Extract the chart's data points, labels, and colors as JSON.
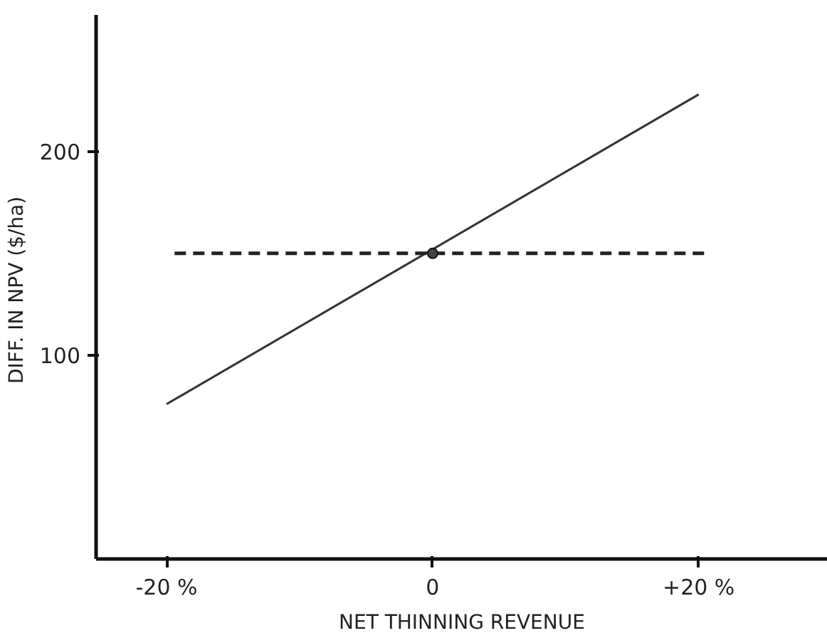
{
  "chart_data": {
    "type": "line",
    "xlabel": "NET THINNING REVENUE",
    "ylabel": "DIFF. IN NPV  ($/ha)",
    "xlim": [
      -25.3,
      29.7
    ],
    "ylim": [
      0,
      267
    ],
    "xticks": [
      {
        "value": -20,
        "label": "-20 %"
      },
      0,
      {
        "value": 20,
        "label": "+20 %"
      }
    ],
    "yticks": [
      100,
      200
    ],
    "grid": false,
    "series": [
      {
        "color": "#333333",
        "line_style": "solid",
        "x": [
          -20,
          20
        ],
        "values": [
          76,
          228
        ]
      },
      {
        "type": "line",
        "color": "#222222",
        "line_style": "dashed",
        "x": [
          -19.4,
          20.7
        ],
        "values": [
          150,
          150
        ]
      },
      {
        "type": "scatter",
        "color": "#444444",
        "marker": "circle",
        "x": [
          0
        ],
        "values": [
          150
        ]
      }
    ]
  }
}
